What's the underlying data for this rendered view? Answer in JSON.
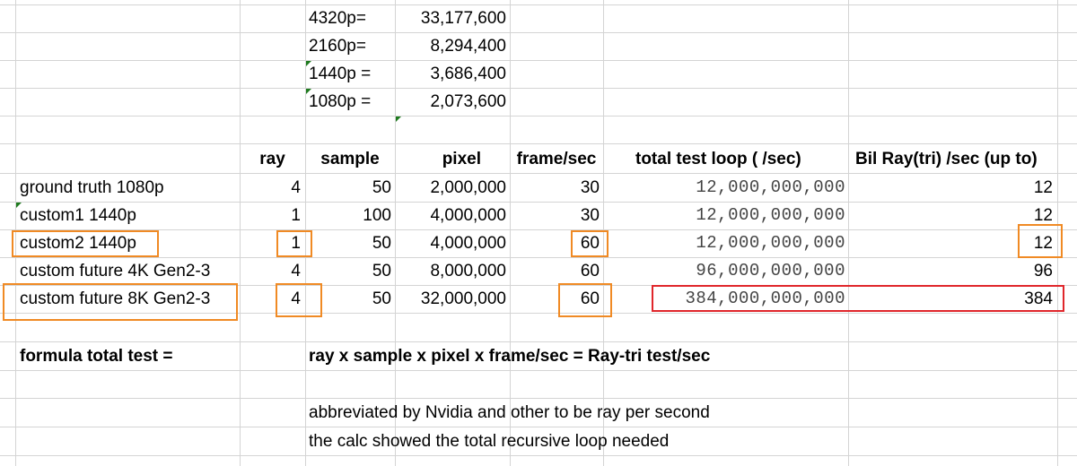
{
  "resolutions": [
    {
      "label": "4320p=",
      "pixels": "33,177,600"
    },
    {
      "label": "2160p=",
      "pixels": "8,294,400"
    },
    {
      "label": "1440p =",
      "pixels": "3,686,400"
    },
    {
      "label": "1080p =",
      "pixels": "2,073,600"
    }
  ],
  "headers": {
    "ray": "ray",
    "sample": "sample",
    "pixel": "pixel",
    "fps": "frame/sec",
    "total": "total test loop ( /sec)",
    "bil": "Bil Ray(tri) /sec (up to)"
  },
  "rows": [
    {
      "name": "ground truth 1080p",
      "ray": "4",
      "sample": "50",
      "pixel": "2,000,000",
      "fps": "30",
      "total": "12,000,000,000",
      "bil": "12"
    },
    {
      "name": "custom1 1440p",
      "ray": "1",
      "sample": "100",
      "pixel": "4,000,000",
      "fps": "30",
      "total": "12,000,000,000",
      "bil": "12"
    },
    {
      "name": "custom2 1440p",
      "ray": "1",
      "sample": "50",
      "pixel": "4,000,000",
      "fps": "60",
      "total": "12,000,000,000",
      "bil": "12"
    },
    {
      "name": "custom future 4K Gen2-3",
      "ray": "4",
      "sample": "50",
      "pixel": "8,000,000",
      "fps": "60",
      "total": "96,000,000,000",
      "bil": "96"
    },
    {
      "name": "custom future 8K Gen2-3",
      "ray": "4",
      "sample": "50",
      "pixel": "32,000,000",
      "fps": "60",
      "total": "384,000,000,000",
      "bil": "384"
    }
  ],
  "formula": {
    "label": "formula total test =",
    "text": "ray x sample x pixel x frame/sec = Ray-tri test/sec"
  },
  "notes": [
    "abbreviated by Nvidia and other to be ray per second",
    "the calc showed the total recursive loop needed"
  ],
  "colors": {
    "grid": "#d4d4d4",
    "highlight_orange": "#f08a24",
    "highlight_red": "#e0262b",
    "indicator_green": "#1e7a1e"
  }
}
